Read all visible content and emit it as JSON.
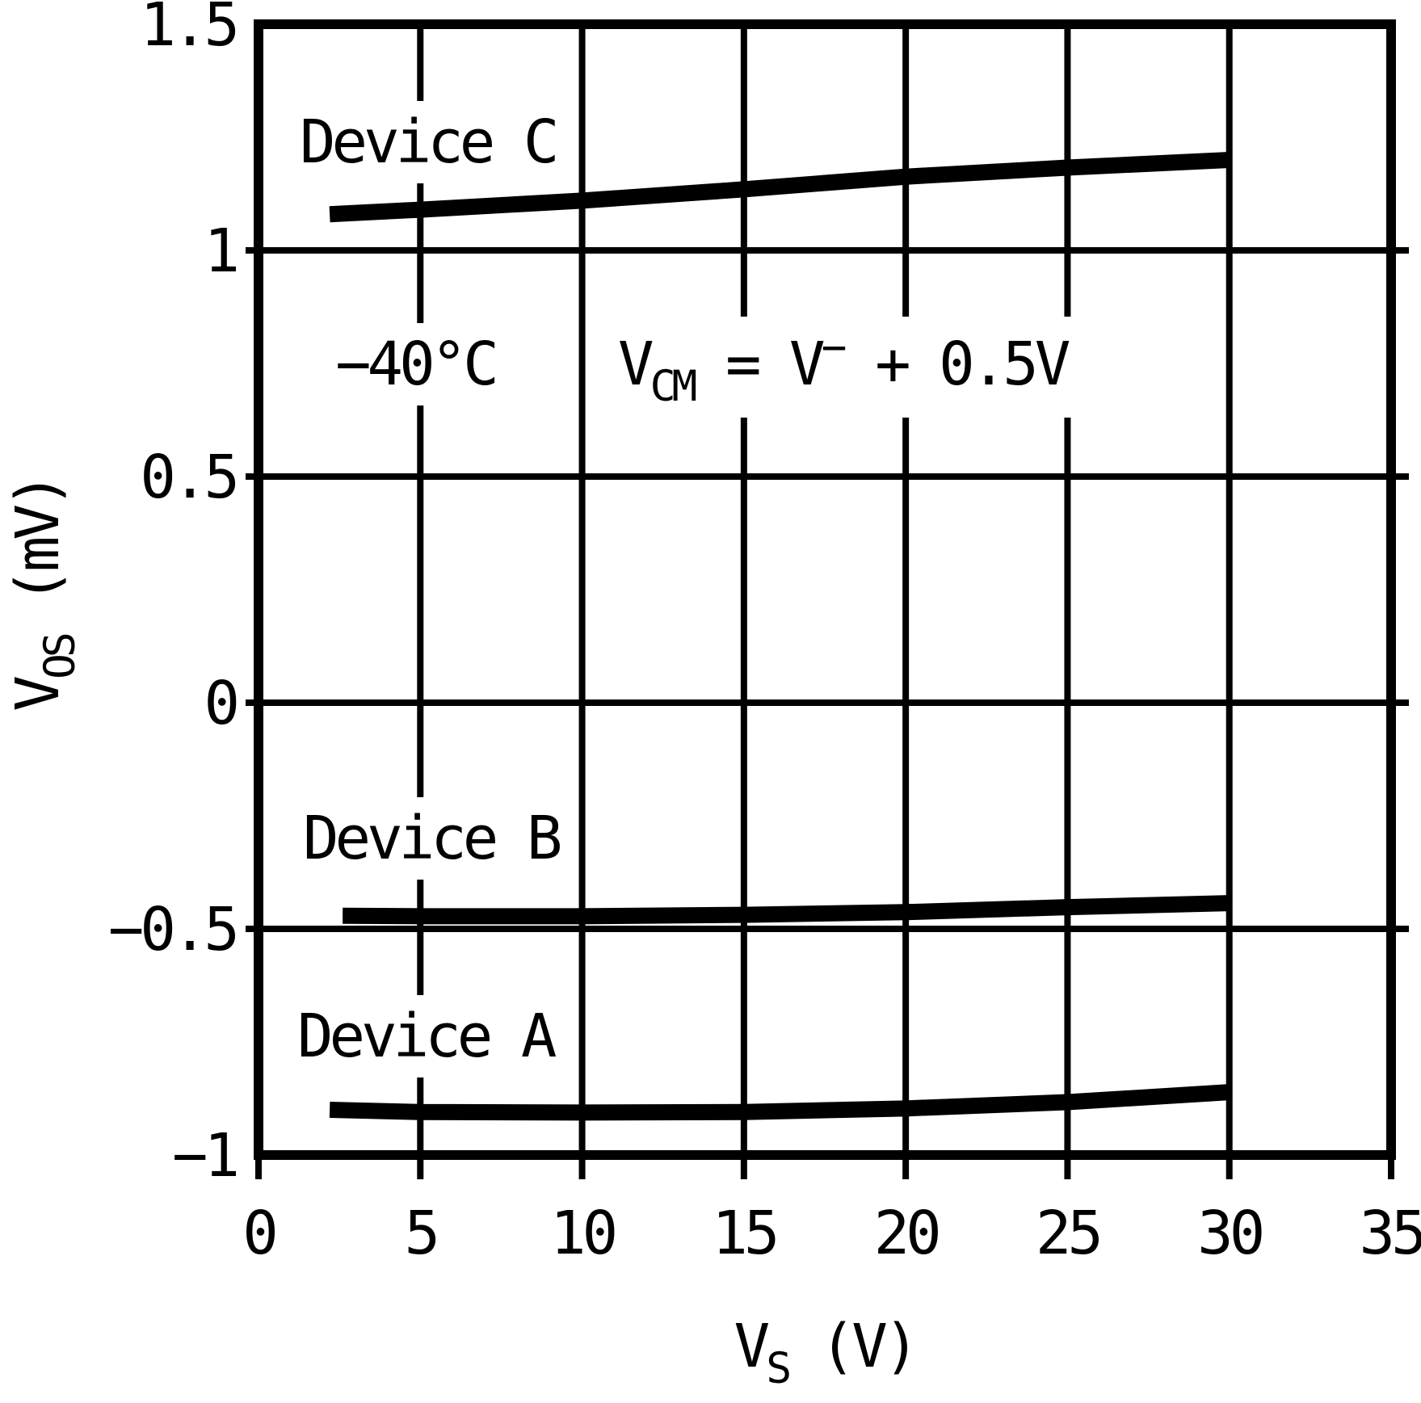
{
  "chart_data": {
    "type": "line",
    "title": "",
    "xlabel": "VS (V)",
    "ylabel": "VOS (mV)",
    "xlabel_parts": [
      {
        "t": "V"
      },
      {
        "t": "S",
        "style": "sub"
      },
      {
        "t": " (V)"
      }
    ],
    "ylabel_parts": [
      {
        "t": "V"
      },
      {
        "t": "OS",
        "style": "sub"
      },
      {
        "t": " (mV)"
      }
    ],
    "xlim": [
      0,
      35
    ],
    "ylim": [
      -1,
      1.5
    ],
    "x_ticks": [
      0,
      5,
      10,
      15,
      20,
      25,
      30,
      35
    ],
    "x_tick_labels": [
      "0",
      "5",
      "10",
      "15",
      "20",
      "25",
      "30",
      "35"
    ],
    "y_ticks": [
      -1,
      -0.5,
      0,
      0.5,
      1,
      1.5
    ],
    "y_tick_labels": [
      "−1",
      "−0.5",
      "0",
      "0.5",
      "1",
      "1.5"
    ],
    "grid": true,
    "legend": "inline-labels",
    "line_color": "#000000",
    "annotations": [
      {
        "text": "−40°C"
      },
      {
        "text": "VCM = V− + 0.5V",
        "parts": [
          {
            "t": "V"
          },
          {
            "t": "CM",
            "style": "sub"
          },
          {
            "t": " = V"
          },
          {
            "t": "−",
            "style": "sup"
          },
          {
            "t": " + 0.5V"
          }
        ]
      }
    ],
    "series": [
      {
        "name": "Device C",
        "x": [
          2.2,
          5,
          10,
          15,
          20,
          25,
          30
        ],
        "values": [
          1.08,
          1.09,
          1.11,
          1.135,
          1.163,
          1.183,
          1.2
        ]
      },
      {
        "name": "Device B",
        "x": [
          2.6,
          5,
          10,
          15,
          20,
          25,
          30
        ],
        "values": [
          -0.471,
          -0.472,
          -0.472,
          -0.469,
          -0.463,
          -0.452,
          -0.443
        ]
      },
      {
        "name": "Device A",
        "x": [
          2.2,
          5,
          10,
          15,
          20,
          25,
          30
        ],
        "values": [
          -0.9,
          -0.905,
          -0.906,
          -0.905,
          -0.897,
          -0.883,
          -0.861
        ]
      }
    ]
  }
}
